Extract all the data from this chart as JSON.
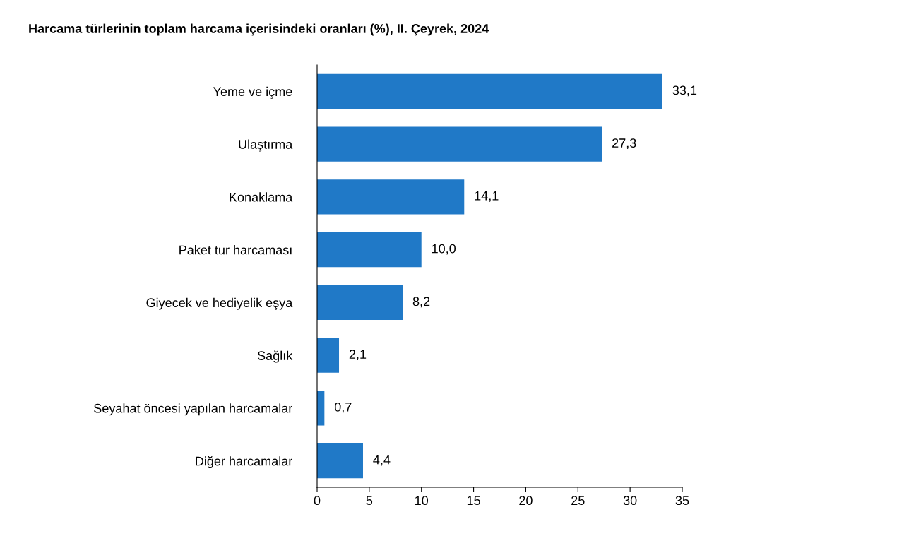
{
  "chart_data": {
    "type": "bar",
    "orientation": "horizontal",
    "title": "Harcama türlerinin toplam harcama içerisindeki oranları (%), II. Çeyrek, 2024",
    "categories": [
      "Yeme ve içme",
      "Ulaştırma",
      "Konaklama",
      "Paket tur harcaması",
      "Giyecek ve hediyelik eşya",
      "Sağlık",
      "Seyahat öncesi yapılan harcamalar",
      "Diğer harcamalar"
    ],
    "values": [
      33.1,
      27.3,
      14.1,
      10.0,
      8.2,
      2.1,
      0.7,
      4.4
    ],
    "value_labels": [
      "33,1",
      "27,3",
      "14,1",
      "10,0",
      "8,2",
      "2,1",
      "0,7",
      "4,4"
    ],
    "color": "#2079c7",
    "xlim": [
      0,
      35
    ],
    "xticks": [
      0,
      5,
      10,
      15,
      20,
      25,
      30,
      35
    ],
    "grid": false
  }
}
